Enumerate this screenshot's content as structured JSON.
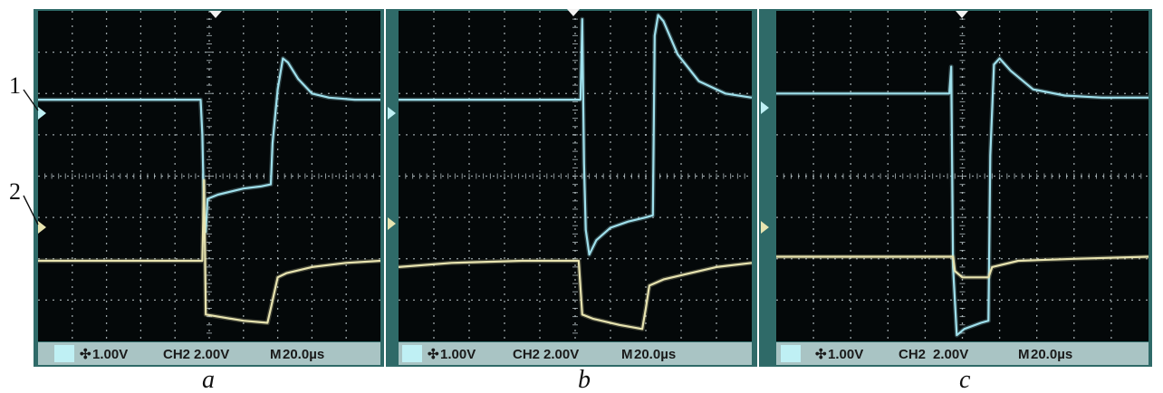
{
  "panels": [
    {
      "caption": "a",
      "status": {
        "ch1": "1.00V",
        "ch2_label": "CH2",
        "ch2": "2.00V",
        "time_label": "M",
        "time": "20.0µs"
      },
      "chart_data": {
        "type": "line",
        "xlim": [
          0,
          200
        ],
        "ylim": [
          -4,
          4
        ],
        "grid": true,
        "x_unit": "µs",
        "series": [
          {
            "color": "#9fe0ec",
            "points": [
              [
                0,
                1.85
              ],
              [
                95,
                1.85
              ],
              [
                96,
                1.0
              ],
              [
                97,
                -0.95
              ],
              [
                98,
                -1.35
              ],
              [
                99,
                -0.55
              ],
              [
                105,
                -0.45
              ],
              [
                120,
                -0.3
              ],
              [
                130,
                -0.25
              ],
              [
                136,
                -0.2
              ],
              [
                137,
                0.8
              ],
              [
                140,
                2.1
              ],
              [
                143,
                2.85
              ],
              [
                146,
                2.75
              ],
              [
                152,
                2.35
              ],
              [
                160,
                2.0
              ],
              [
                170,
                1.9
              ],
              [
                185,
                1.85
              ],
              [
                200,
                1.85
              ]
            ]
          },
          {
            "color": "#e8e4b0",
            "points": [
              [
                0,
                -2.05
              ],
              [
                96,
                -2.05
              ],
              [
                97,
                -0.1
              ],
              [
                98,
                -3.35
              ],
              [
                105,
                -3.4
              ],
              [
                120,
                -3.5
              ],
              [
                134,
                -3.55
              ],
              [
                136,
                -3.2
              ],
              [
                140,
                -2.45
              ],
              [
                145,
                -2.35
              ],
              [
                160,
                -2.2
              ],
              [
                180,
                -2.1
              ],
              [
                200,
                -2.05
              ]
            ]
          }
        ]
      }
    },
    {
      "caption": "b",
      "status": {
        "ch1": "1.00V",
        "ch2_label": "CH2",
        "ch2": "2.00V",
        "time_label": "M",
        "time": "20.0µs"
      },
      "chart_data": {
        "type": "line",
        "xlim": [
          0,
          200
        ],
        "ylim": [
          -4,
          4
        ],
        "grid": true,
        "x_unit": "µs",
        "series": [
          {
            "color": "#9fe0ec",
            "points": [
              [
                0,
                1.85
              ],
              [
                103,
                1.85
              ],
              [
                104,
                3.8
              ],
              [
                105,
                0.3
              ],
              [
                106,
                -1.3
              ],
              [
                108,
                -1.9
              ],
              [
                112,
                -1.55
              ],
              [
                120,
                -1.25
              ],
              [
                130,
                -1.1
              ],
              [
                140,
                -1.0
              ],
              [
                144,
                -0.95
              ],
              [
                145,
                3.4
              ],
              [
                147,
                3.9
              ],
              [
                150,
                3.75
              ],
              [
                158,
                2.95
              ],
              [
                170,
                2.3
              ],
              [
                185,
                2.0
              ],
              [
                200,
                1.9
              ]
            ]
          },
          {
            "color": "#e8e4b0",
            "points": [
              [
                0,
                -2.2
              ],
              [
                30,
                -2.1
              ],
              [
                70,
                -2.05
              ],
              [
                102,
                -2.05
              ],
              [
                104,
                -3.35
              ],
              [
                110,
                -3.45
              ],
              [
                125,
                -3.6
              ],
              [
                138,
                -3.7
              ],
              [
                140,
                -3.2
              ],
              [
                142,
                -2.65
              ],
              [
                150,
                -2.5
              ],
              [
                165,
                -2.35
              ],
              [
                180,
                -2.2
              ],
              [
                200,
                -2.1
              ]
            ]
          }
        ]
      }
    },
    {
      "caption": "c",
      "status": {
        "ch1": "1.00V",
        "ch2_label": "CH2",
        "ch2": "2.00V",
        "time_label": "M",
        "time": "20.0µs"
      },
      "chart_data": {
        "type": "line",
        "xlim": [
          0,
          200
        ],
        "ylim": [
          -4,
          4
        ],
        "grid": true,
        "x_unit": "µs",
        "series": [
          {
            "color": "#9fe0ec",
            "points": [
              [
                0,
                2.0
              ],
              [
                93,
                2.0
              ],
              [
                94,
                2.65
              ],
              [
                95,
                -2.2
              ],
              [
                97,
                -3.85
              ],
              [
                101,
                -3.7
              ],
              [
                110,
                -3.55
              ],
              [
                114,
                -3.5
              ],
              [
                115,
                0.5
              ],
              [
                117,
                2.7
              ],
              [
                120,
                2.85
              ],
              [
                126,
                2.55
              ],
              [
                138,
                2.1
              ],
              [
                155,
                1.95
              ],
              [
                175,
                1.9
              ],
              [
                200,
                1.9
              ]
            ]
          },
          {
            "color": "#e8e4b0",
            "points": [
              [
                0,
                -1.95
              ],
              [
                95,
                -1.95
              ],
              [
                96,
                -2.3
              ],
              [
                100,
                -2.45
              ],
              [
                114,
                -2.45
              ],
              [
                116,
                -2.2
              ],
              [
                130,
                -2.05
              ],
              [
                160,
                -2.0
              ],
              [
                200,
                -1.95
              ]
            ]
          }
        ]
      }
    }
  ],
  "trace_markers": {
    "trace1": "1",
    "trace2": "2"
  },
  "colors": {
    "screen": "#040809",
    "grid": "#c8d4d8",
    "frame": "#2f6a68",
    "status_bar": "#a9c4c4",
    "cyan_box": "#bff0f4"
  }
}
